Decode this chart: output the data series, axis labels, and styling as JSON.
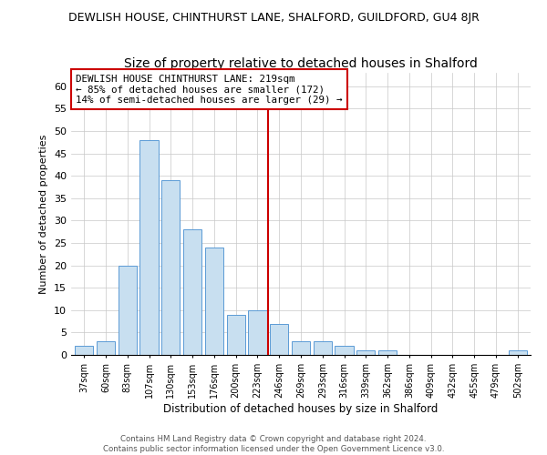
{
  "title": "DEWLISH HOUSE, CHINTHURST LANE, SHALFORD, GUILDFORD, GU4 8JR",
  "subtitle": "Size of property relative to detached houses in Shalford",
  "xlabel": "Distribution of detached houses by size in Shalford",
  "ylabel": "Number of detached properties",
  "bar_labels": [
    "37sqm",
    "60sqm",
    "83sqm",
    "107sqm",
    "130sqm",
    "153sqm",
    "176sqm",
    "200sqm",
    "223sqm",
    "246sqm",
    "269sqm",
    "293sqm",
    "316sqm",
    "339sqm",
    "362sqm",
    "386sqm",
    "409sqm",
    "432sqm",
    "455sqm",
    "479sqm",
    "502sqm"
  ],
  "bar_values": [
    2,
    3,
    20,
    48,
    39,
    28,
    24,
    9,
    10,
    7,
    3,
    3,
    2,
    1,
    1,
    0,
    0,
    0,
    0,
    0,
    1
  ],
  "bar_color": "#c8dff0",
  "bar_edge_color": "#5b9bd5",
  "vline_x": 8.5,
  "vline_color": "#cc0000",
  "ylim": [
    0,
    63
  ],
  "yticks": [
    0,
    5,
    10,
    15,
    20,
    25,
    30,
    35,
    40,
    45,
    50,
    55,
    60
  ],
  "annotation_title": "DEWLISH HOUSE CHINTHURST LANE: 219sqm",
  "annotation_line1": "← 85% of detached houses are smaller (172)",
  "annotation_line2": "14% of semi-detached houses are larger (29) →",
  "annotation_box_color": "#ffffff",
  "annotation_box_edge": "#cc0000",
  "footer_line1": "Contains HM Land Registry data © Crown copyright and database right 2024.",
  "footer_line2": "Contains public sector information licensed under the Open Government Licence v3.0.",
  "background_color": "#ffffff",
  "grid_color": "#c8c8c8"
}
